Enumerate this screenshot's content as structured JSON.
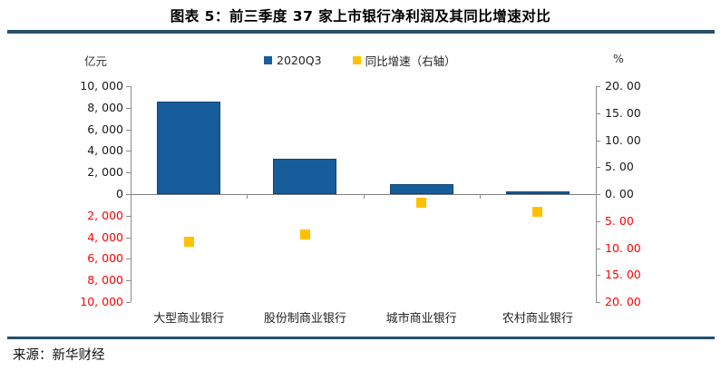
{
  "title": "图表 5：前三季度 37 家上市银行净利润及其同比增速对比",
  "source": "来源：新华财经",
  "colors": {
    "bar": "#175D9C",
    "bar_border": "#10456E",
    "marker": "#FFC000",
    "separator": "#24506B",
    "axis": "#8C8C8C",
    "negative_tick": "#FF0000"
  },
  "legend": [
    {
      "label": "2020Q3",
      "swatch": "#175D9C",
      "swatch_name": "bar-series-swatch"
    },
    {
      "label": "同比增速（右轴）",
      "swatch": "#FFC000",
      "swatch_name": "scatter-series-swatch"
    }
  ],
  "chart_data": {
    "type": "bar",
    "subtype": "bar-and-scatter-combo-dual-axis",
    "categories": [
      "大型商业银行",
      "股份制商业银行",
      "城市商业银行",
      "农村商业银行"
    ],
    "series": [
      {
        "name": "2020Q3",
        "type": "bar",
        "axis": "left",
        "unit": "亿元",
        "color": "#175D9C",
        "values": [
          8600,
          3300,
          950,
          250
        ]
      },
      {
        "name": "同比增速（右轴）",
        "type": "scatter",
        "axis": "right",
        "unit": "%",
        "color": "#FFC000",
        "values": [
          -8.9,
          -7.5,
          -1.6,
          -3.3
        ]
      }
    ],
    "left_axis": {
      "label": "亿元",
      "min": -10000,
      "max": 10000,
      "tick_step": 2000,
      "tick_labels_top_to_bottom": [
        "10, 000",
        "8, 000",
        "6, 000",
        "4, 000",
        "2, 000",
        "0",
        "2, 000",
        "4, 000",
        "6, 000",
        "8, 000",
        "10, 000"
      ],
      "negative_ticks_red_unsigned": true
    },
    "right_axis": {
      "label": "%",
      "min": -20,
      "max": 20,
      "tick_step": 5,
      "tick_labels_top_to_bottom": [
        "20. 00",
        "15. 00",
        "10. 00",
        "5. 00",
        "0. 00",
        "5. 00",
        "10. 00",
        "15. 00",
        "20. 00"
      ],
      "negative_ticks_red_unsigned": true
    },
    "grid": false,
    "legend_position": "top-center"
  }
}
